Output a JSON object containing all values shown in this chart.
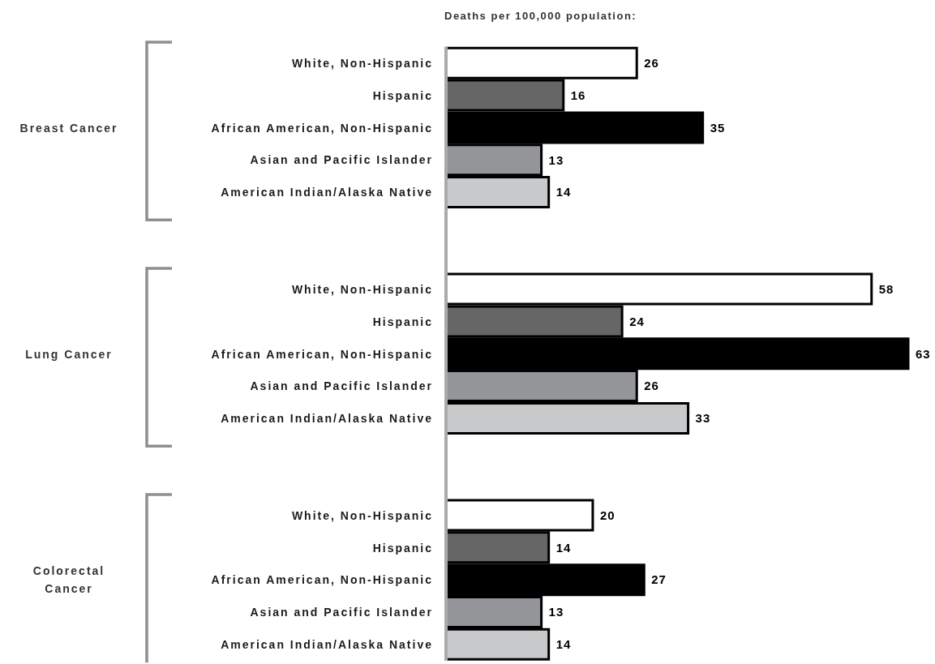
{
  "chart_data": {
    "type": "bar",
    "orientation": "horizontal",
    "title": "Deaths per 100,000 population:",
    "categories": [
      "White, Non-Hispanic",
      "Hispanic",
      "African American, Non-Hispanic",
      "Asian and Pacific Islander",
      "American Indian/Alaska Native",
      null,
      null,
      "White, Non-Hispanic",
      "Hispanic",
      "African American, Non-Hispanic",
      "Asian and Pacific Islander",
      "American Indian/Alaska Native",
      null,
      null,
      "White, Non-Hispanic",
      "Hispanic",
      "African American, Non-Hispanic",
      "Asian and Pacific Islander",
      "American Indian/Alaska Native"
    ],
    "values": [
      26,
      16,
      35,
      13,
      14,
      null,
      null,
      58,
      24,
      63,
      26,
      33,
      null,
      null,
      20,
      14,
      27,
      13,
      14
    ],
    "colors": [
      "#ffffff",
      "#666666",
      "#000000",
      "#939598",
      "#c8c9cb",
      null,
      null,
      "#ffffff",
      "#666666",
      "#000000",
      "#939598",
      "#c8c9cb",
      null,
      null,
      "#ffffff",
      "#666666",
      "#000000",
      "#939598",
      "#c8c9cb"
    ],
    "data_labels": true,
    "annotations": [
      "Breast Cancer",
      "Lung Cancer",
      "Colorectal Cancer"
    ]
  }
}
